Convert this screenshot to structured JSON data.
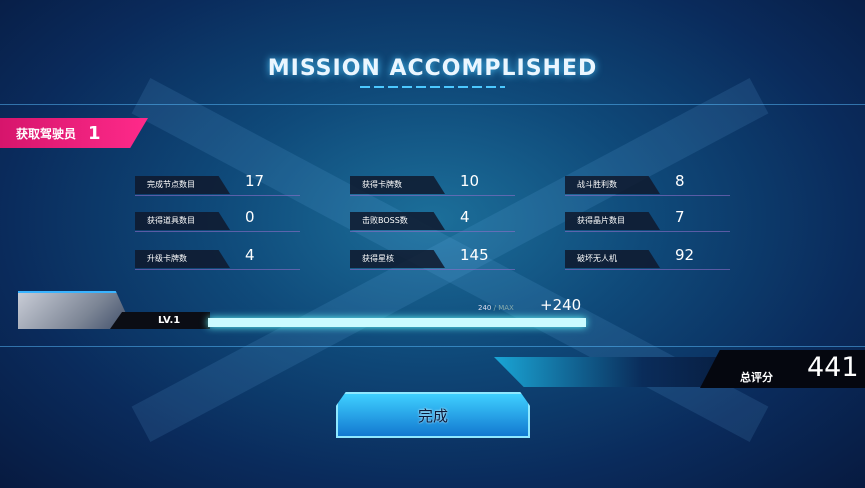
{
  "title": "MISSION ACCOMPLISHED",
  "pilot": {
    "label": "获取驾驶员",
    "count": "1"
  },
  "stats": [
    {
      "label": "完成节点数目",
      "value": "17"
    },
    {
      "label": "获得卡牌数",
      "value": "10"
    },
    {
      "label": "战斗胜利数",
      "value": "8"
    },
    {
      "label": "获得道具数目",
      "value": "0"
    },
    {
      "label": "击败BOSS数",
      "value": "4"
    },
    {
      "label": "获得晶片数目",
      "value": "7"
    },
    {
      "label": "升级卡牌数",
      "value": "4"
    },
    {
      "label": "获得星核",
      "value": "145"
    },
    {
      "label": "破坏无人机",
      "value": "92"
    }
  ],
  "level": {
    "label": "LV.1",
    "xp": "240",
    "max": "MAX",
    "separator": " / ",
    "gain": "+240",
    "progress": 1.0
  },
  "score": {
    "label": "总评分",
    "value": "441"
  },
  "done_button": "完成",
  "colors": {
    "accent": "#3fd0ff",
    "pilot_tag": "#ff2a8a"
  }
}
